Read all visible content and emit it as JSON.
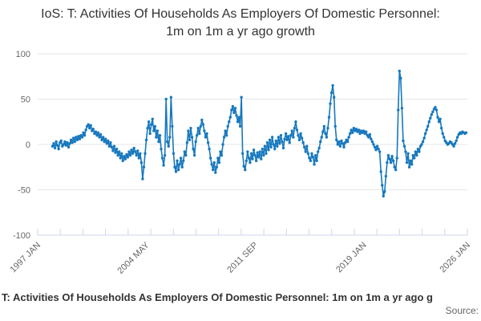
{
  "title": "IoS: T: Activities Of Households As Employers Of Domestic Personnel: 1m on 1m a yr ago growth",
  "footer": {
    "series_label": "T: Activities Of Households As Employers Of Domestic Personnel: 1m on 1m a yr ago g",
    "source_label": "Source:"
  },
  "colors": {
    "line": "#1778be",
    "grid": "#e6e6e6",
    "axis": "#ccd6eb",
    "tick_label": "#666666",
    "title_text": "#333333",
    "background": "#ffffff"
  },
  "chart_data": {
    "type": "line",
    "title": "IoS: T: Activities Of Households As Employers Of Domestic Personnel: 1m on 1m a yr ago growth",
    "xlabel": "",
    "ylabel": "",
    "legend": "none",
    "grid": "horizontal",
    "marker": "circle",
    "frequency": "monthly",
    "data_start": "1998 JAN",
    "data_end": "2025 DEC",
    "x_axis_start": "1997 JAN",
    "x_axis_end": "2026 JAN",
    "x_tick_labels": [
      "1997 JAN",
      "2004 MAY",
      "2011 SEP",
      "2019 JAN",
      "2026 JAN"
    ],
    "x_tick_month_offsets": [
      0,
      88,
      176,
      264,
      348
    ],
    "y_ticks": [
      -100,
      -50,
      0,
      50,
      100
    ],
    "ylim": [
      -100,
      100
    ],
    "values": [
      -2,
      1,
      -4,
      3,
      -1,
      -5,
      2,
      4,
      -2,
      0,
      3,
      -1,
      2,
      -3,
      1,
      5,
      2,
      7,
      3,
      8,
      5,
      9,
      6,
      10,
      8,
      13,
      10,
      16,
      20,
      22,
      18,
      21,
      15,
      17,
      12,
      14,
      10,
      13,
      8,
      11,
      5,
      8,
      3,
      6,
      1,
      4,
      -2,
      2,
      -3,
      -7,
      -2,
      -9,
      -5,
      -12,
      -8,
      -15,
      -10,
      -18,
      -13,
      -16,
      -11,
      -14,
      -8,
      -12,
      -6,
      -10,
      -4,
      -8,
      -12,
      -7,
      -15,
      -10,
      -20,
      -38,
      -25,
      -10,
      5,
      18,
      25,
      12,
      22,
      28,
      15,
      20,
      8,
      15,
      3,
      10,
      -5,
      -15,
      -23,
      -12,
      50,
      3,
      -2,
      8,
      52,
      20,
      -10,
      -25,
      -30,
      -18,
      -28,
      -22,
      -15,
      -25,
      -18,
      -8,
      -12,
      2,
      15,
      5,
      18,
      8,
      -5,
      -12,
      3,
      10,
      18,
      12,
      20,
      27,
      22,
      15,
      8,
      12,
      2,
      -5,
      -15,
      -22,
      -28,
      -20,
      -31,
      -25,
      -15,
      -20,
      -8,
      -12,
      0,
      8,
      15,
      10,
      20,
      25,
      30,
      38,
      42,
      35,
      40,
      32,
      25,
      30,
      20,
      52,
      -10,
      -24,
      -28,
      -18,
      -8,
      -15,
      -20,
      -10,
      -16,
      -6,
      -12,
      -18,
      -9,
      -14,
      -8,
      -16,
      -5,
      -12,
      -2,
      -10,
      2,
      -6,
      5,
      -3,
      8,
      0,
      -5,
      4,
      -2,
      8,
      1,
      10,
      3,
      -4,
      6,
      12,
      5,
      9,
      2,
      10,
      15,
      8,
      18,
      25,
      16,
      10,
      5,
      12,
      7,
      2,
      -3,
      -8,
      -2,
      -10,
      -15,
      -18,
      -10,
      -14,
      -22,
      -12,
      -18,
      -8,
      -4,
      3,
      8,
      14,
      20,
      12,
      8,
      18,
      30,
      45,
      57,
      65,
      52,
      20,
      5,
      0,
      3,
      -2,
      4,
      1,
      -3,
      2,
      5,
      3,
      8,
      12,
      16,
      13,
      18,
      15,
      17,
      14,
      16,
      12,
      15,
      13,
      15,
      12,
      14,
      10,
      8,
      11,
      6,
      3,
      0,
      -3,
      -6,
      -2,
      -5,
      -8,
      -30,
      -45,
      -57,
      -52,
      -35,
      -20,
      -12,
      -16,
      -20,
      -13,
      -18,
      -25,
      -28,
      -15,
      38,
      81,
      73,
      40,
      4,
      -2,
      -8,
      -20,
      -10,
      -25,
      -18,
      -22,
      -12,
      -15,
      -8,
      -12,
      -5,
      -8,
      -2,
      0,
      3,
      7,
      12,
      16,
      20,
      25,
      29,
      33,
      36,
      39,
      41,
      38,
      30,
      25,
      28,
      18,
      12,
      8,
      4,
      2,
      0,
      1,
      3,
      2,
      0,
      -2,
      1,
      4,
      8,
      11,
      13,
      12,
      14,
      13,
      12,
      13
    ]
  }
}
